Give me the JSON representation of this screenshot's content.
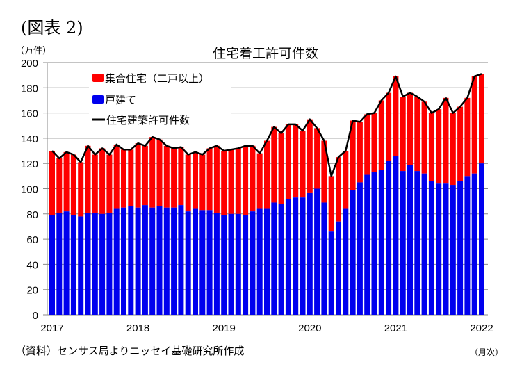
{
  "figure_label": "(図表 2)",
  "chart_data": {
    "type": "bar",
    "subtype": "stacked bar with line",
    "title": "住宅着工許可件数",
    "ylabel": "（万件）",
    "xlabel": "（月次）",
    "source": "（資料）センサス局よりニッセイ基礎研究所作成",
    "ylim": [
      0,
      200
    ],
    "yticks": [
      0,
      20,
      40,
      60,
      80,
      100,
      120,
      140,
      160,
      180,
      200
    ],
    "xtick_labels": [
      "2017",
      "2018",
      "2019",
      "2020",
      "2021",
      "2022"
    ],
    "x_start": "2017-01",
    "x_end": "2022-01",
    "frequency": "monthly",
    "grid": true,
    "legend_position": "top-left",
    "colors": {
      "multi": "#ff0000",
      "single": "#0000ee",
      "total": "#000000"
    },
    "series": [
      {
        "name": "集合住宅（二戸以上）",
        "kind": "bar",
        "values": "total minus single-family"
      },
      {
        "name": "戸建て",
        "kind": "bar",
        "values": [
          79,
          81,
          82,
          79,
          78,
          81,
          81,
          80,
          81,
          84,
          85,
          86,
          85,
          87,
          85,
          86,
          85,
          85,
          87,
          82,
          84,
          83,
          83,
          81,
          79,
          80,
          80,
          79,
          82,
          84,
          84,
          89,
          88,
          92,
          93,
          93,
          97,
          100,
          89,
          66,
          74,
          84,
          99,
          105,
          111,
          113,
          115,
          122,
          126,
          114,
          119,
          114,
          112,
          106,
          104,
          104,
          103,
          106,
          110,
          112,
          120
        ]
      },
      {
        "name": "住宅建築許可件数",
        "kind": "line",
        "values": [
          130,
          124,
          129,
          127,
          121,
          134,
          127,
          132,
          127,
          135,
          131,
          131,
          136,
          134,
          141,
          139,
          134,
          132,
          133,
          127,
          129,
          127,
          132,
          134,
          130,
          131,
          132,
          134,
          134,
          128,
          138,
          149,
          144,
          151,
          151,
          146,
          155,
          148,
          138,
          110,
          125,
          130,
          154,
          153,
          159,
          160,
          170,
          176,
          189,
          173,
          176,
          173,
          169,
          160,
          163,
          172,
          160,
          165,
          172,
          189,
          191
        ]
      }
    ]
  }
}
